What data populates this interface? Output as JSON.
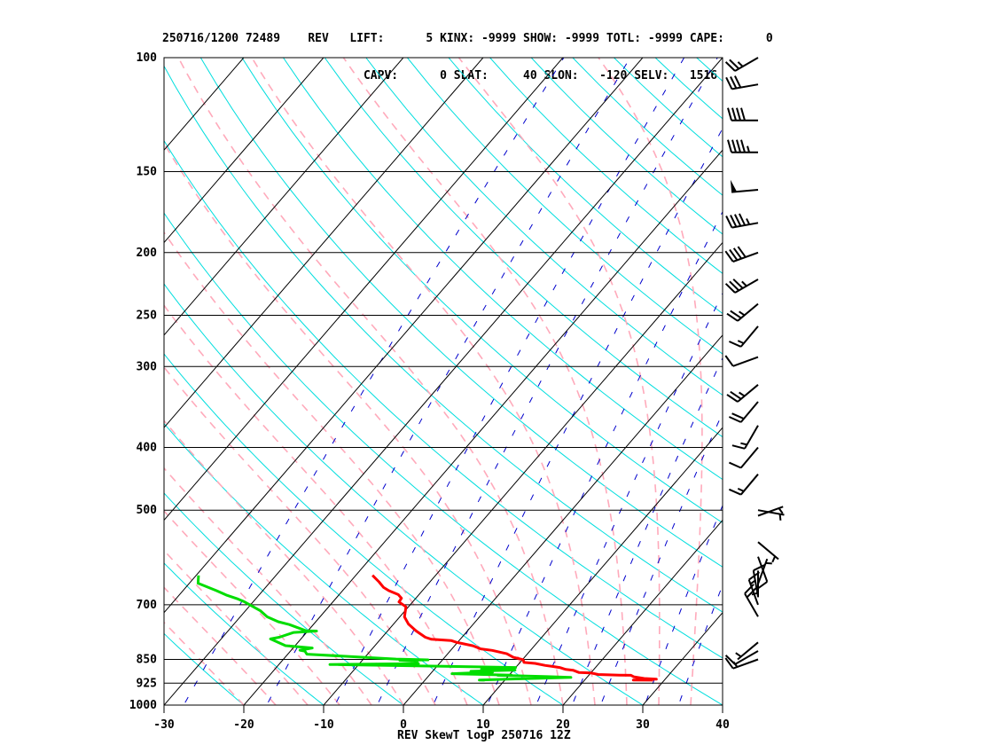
{
  "header": {
    "line1": "250716/1200 72489    REV   LIFT:      5 KINX: -9999 SHOW: -9999 TOTL: -9999 CAPE:      0",
    "line2": "                             CAPV:      0 SLAT:     40 SLON:   -120 SELV:   1516"
  },
  "footer": "REV SkewT logP 250716 12Z",
  "chart_data": {
    "type": "line",
    "title": "REV SkewT logP 250716 12Z",
    "xlim": [
      -30,
      40
    ],
    "ylim": [
      1000,
      100
    ],
    "y_scale": "log",
    "skew_degC_per_decade": 70,
    "pressure_ticks": [
      100,
      150,
      200,
      250,
      300,
      400,
      500,
      700,
      850,
      925,
      1000
    ],
    "temp_ticks": [
      -30,
      -20,
      -10,
      0,
      10,
      20,
      30,
      40
    ],
    "colors": {
      "temperature": "#ff0000",
      "dewpoint": "#00dd00",
      "isotherm": "#000000",
      "dry_adiabat": "#00dede",
      "moist_adiabat": "#ffaabb",
      "mixing_ratio": "#0000cc",
      "barb": "#000000"
    },
    "series": [
      {
        "name": "temperature",
        "points": [
          [
            850,
            28.6
          ],
          [
            855,
            26.1
          ],
          [
            880,
            28.9
          ],
          [
            900,
            27.3
          ],
          [
            950,
            25.8
          ],
          [
            993,
            25.3
          ],
          [
            1000,
            23.8
          ],
          [
            1017,
            21.1
          ],
          [
            1063,
            20.0
          ],
          [
            1074,
            18.5
          ],
          [
            1142,
            17.5
          ],
          [
            1165,
            16.5
          ],
          [
            1221,
            15.5
          ],
          [
            1253,
            14.5
          ],
          [
            1281,
            13.5
          ],
          [
            1342,
            12.0
          ],
          [
            1370,
            10.5
          ],
          [
            1449,
            10.1
          ],
          [
            1518,
            8.6
          ],
          [
            1622,
            7.4
          ],
          [
            1719,
            5.2
          ],
          [
            1763,
            3.6
          ],
          [
            1851,
            2.3
          ],
          [
            1952,
            -0.2
          ],
          [
            2000,
            -1.0
          ],
          [
            2037,
            -3.6
          ],
          [
            2096,
            -4.6
          ],
          [
            2272,
            -6.4
          ],
          [
            2466,
            -8.1
          ],
          [
            2673,
            -9.4
          ],
          [
            2956,
            -10.3
          ],
          [
            3091,
            -11.7
          ],
          [
            3197,
            -11.8
          ],
          [
            3298,
            -12.6
          ],
          [
            3406,
            -14.2
          ],
          [
            3494,
            -15.2
          ],
          [
            3651,
            -16.4
          ],
          [
            3827,
            -17.9
          ]
        ]
      },
      {
        "name": "dewpoint",
        "points": [
          [
            850,
            7.5
          ],
          [
            855,
            6.8
          ],
          [
            880,
            10.3
          ],
          [
            930,
            18.0
          ],
          [
            955,
            15.0
          ],
          [
            993,
            8.6
          ],
          [
            1000,
            10.3
          ],
          [
            1040,
            2.7
          ],
          [
            1089,
            7.6
          ],
          [
            1110,
            4.8
          ],
          [
            1147,
            10.2
          ],
          [
            1173,
            5.9
          ],
          [
            1223,
            10.0
          ],
          [
            1310,
            -13.6
          ],
          [
            1335,
            -2.6
          ],
          [
            1353,
            -3.1
          ],
          [
            1406,
            -3.0
          ],
          [
            1430,
            -5.3
          ],
          [
            1443,
            -1.8
          ],
          [
            1466,
            -5.9
          ],
          [
            1608,
            -17.6
          ],
          [
            1698,
            -18.2
          ],
          [
            1723,
            -18.9
          ],
          [
            1787,
            -17.6
          ],
          [
            1853,
            -21.2
          ],
          [
            2046,
            -23.8
          ],
          [
            2096,
            -22.9
          ],
          [
            2233,
            -21.6
          ],
          [
            2272,
            -18.9
          ],
          [
            2278,
            -20.2
          ],
          [
            2455,
            -23.0
          ],
          [
            2537,
            -24.7
          ],
          [
            2673,
            -26.6
          ],
          [
            2844,
            -28.1
          ],
          [
            3104,
            -31.2
          ],
          [
            3186,
            -32.4
          ],
          [
            3285,
            -34.1
          ],
          [
            3406,
            -35.8
          ],
          [
            3610,
            -38.9
          ],
          [
            3826,
            -39.7
          ]
        ]
      }
    ],
    "wind_barbs": [
      {
        "pressure": 850,
        "dir": 250,
        "spd": 15
      },
      {
        "pressure": 825,
        "dir": 240,
        "spd": 10
      },
      {
        "pressure": 800,
        "dir": 230,
        "spd": 5
      },
      {
        "pressure": 730,
        "dir": 330,
        "spd": 20
      },
      {
        "pressure": 700,
        "dir": 340,
        "spd": 15
      },
      {
        "pressure": 680,
        "dir": 350,
        "spd": 10
      },
      {
        "pressure": 650,
        "dir": 20,
        "spd": 5
      },
      {
        "pressure": 620,
        "dir": 180,
        "spd": 5
      },
      {
        "pressure": 590,
        "dir": 160,
        "spd": 10
      },
      {
        "pressure": 560,
        "dir": 130,
        "spd": 5
      },
      {
        "pressure": 510,
        "dir": 70,
        "spd": 5
      },
      {
        "pressure": 500,
        "dir": 100,
        "spd": 5
      },
      {
        "pressure": 440,
        "dir": 220,
        "spd": 15
      },
      {
        "pressure": 400,
        "dir": 220,
        "spd": 10
      },
      {
        "pressure": 370,
        "dir": 210,
        "spd": 15
      },
      {
        "pressure": 340,
        "dir": 220,
        "spd": 20
      },
      {
        "pressure": 320,
        "dir": 230,
        "spd": 25
      },
      {
        "pressure": 290,
        "dir": 250,
        "spd": 10
      },
      {
        "pressure": 260,
        "dir": 220,
        "spd": 15
      },
      {
        "pressure": 240,
        "dir": 230,
        "spd": 25
      },
      {
        "pressure": 220,
        "dir": 240,
        "spd": 35
      },
      {
        "pressure": 200,
        "dir": 250,
        "spd": 40
      },
      {
        "pressure": 180,
        "dir": 260,
        "spd": 45
      },
      {
        "pressure": 160,
        "dir": 265,
        "spd": 50
      },
      {
        "pressure": 140,
        "dir": 270,
        "spd": 45
      },
      {
        "pressure": 125,
        "dir": 270,
        "spd": 40
      },
      {
        "pressure": 110,
        "dir": 260,
        "spd": 30
      },
      {
        "pressure": 100,
        "dir": 240,
        "spd": 25
      }
    ]
  }
}
